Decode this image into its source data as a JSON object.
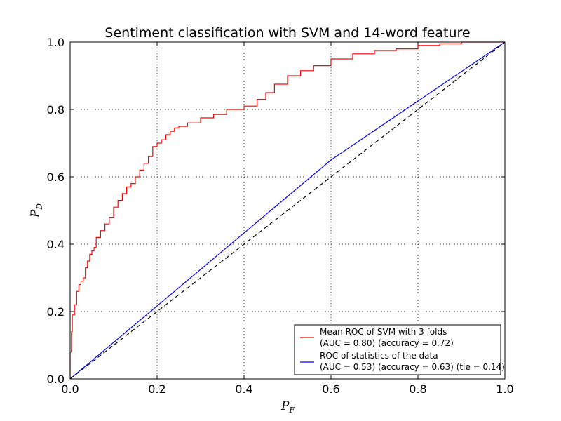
{
  "chart_data": {
    "type": "line",
    "title": "Sentiment classification with SVM and 14-word feature",
    "xlabel": "P",
    "xlabel_sub": "F",
    "ylabel": "P",
    "ylabel_sub": "D",
    "xlim": [
      0.0,
      1.0
    ],
    "ylim": [
      0.0,
      1.0
    ],
    "xticks": [
      "0.0",
      "0.2",
      "0.4",
      "0.6",
      "0.8",
      "1.0"
    ],
    "yticks": [
      "0.0",
      "0.2",
      "0.4",
      "0.6",
      "0.8",
      "1.0"
    ],
    "grid": true,
    "legend_position": "lower-right",
    "series": [
      {
        "name": "Mean ROC of SVM with 3 folds",
        "name_line2": "(AUC = 0.80) (accuracy = 0.72)",
        "color": "#ff0000",
        "style": "step",
        "x": [
          0.0,
          0.003,
          0.005,
          0.01,
          0.015,
          0.02,
          0.025,
          0.03,
          0.035,
          0.04,
          0.045,
          0.05,
          0.055,
          0.06,
          0.07,
          0.08,
          0.09,
          0.1,
          0.11,
          0.12,
          0.13,
          0.14,
          0.15,
          0.16,
          0.17,
          0.18,
          0.19,
          0.2,
          0.21,
          0.22,
          0.23,
          0.24,
          0.25,
          0.27,
          0.3,
          0.33,
          0.36,
          0.4,
          0.43,
          0.45,
          0.47,
          0.5,
          0.53,
          0.56,
          0.6,
          0.65,
          0.7,
          0.75,
          0.8,
          0.85,
          0.9,
          0.95,
          1.0
        ],
        "y": [
          0.0,
          0.08,
          0.14,
          0.19,
          0.22,
          0.26,
          0.28,
          0.29,
          0.3,
          0.33,
          0.35,
          0.37,
          0.38,
          0.39,
          0.42,
          0.44,
          0.46,
          0.48,
          0.51,
          0.53,
          0.55,
          0.57,
          0.58,
          0.6,
          0.62,
          0.64,
          0.66,
          0.69,
          0.7,
          0.71,
          0.725,
          0.735,
          0.745,
          0.75,
          0.76,
          0.775,
          0.785,
          0.8,
          0.81,
          0.83,
          0.85,
          0.875,
          0.9,
          0.915,
          0.93,
          0.95,
          0.965,
          0.975,
          0.98,
          0.99,
          0.995,
          1.0,
          1.0
        ]
      },
      {
        "name": "ROC of statistics of the data",
        "name_line2": "(AUC = 0.53) (accuracy = 0.63) (tie = 0.14)",
        "color": "#0000ff",
        "style": "line",
        "x": [
          0.0,
          0.6,
          1.0
        ],
        "y": [
          0.0,
          0.65,
          1.0
        ]
      },
      {
        "name": "",
        "color": "#000000",
        "style": "dashed",
        "x": [
          0.0,
          1.0
        ],
        "y": [
          0.0,
          1.0
        ]
      }
    ]
  }
}
